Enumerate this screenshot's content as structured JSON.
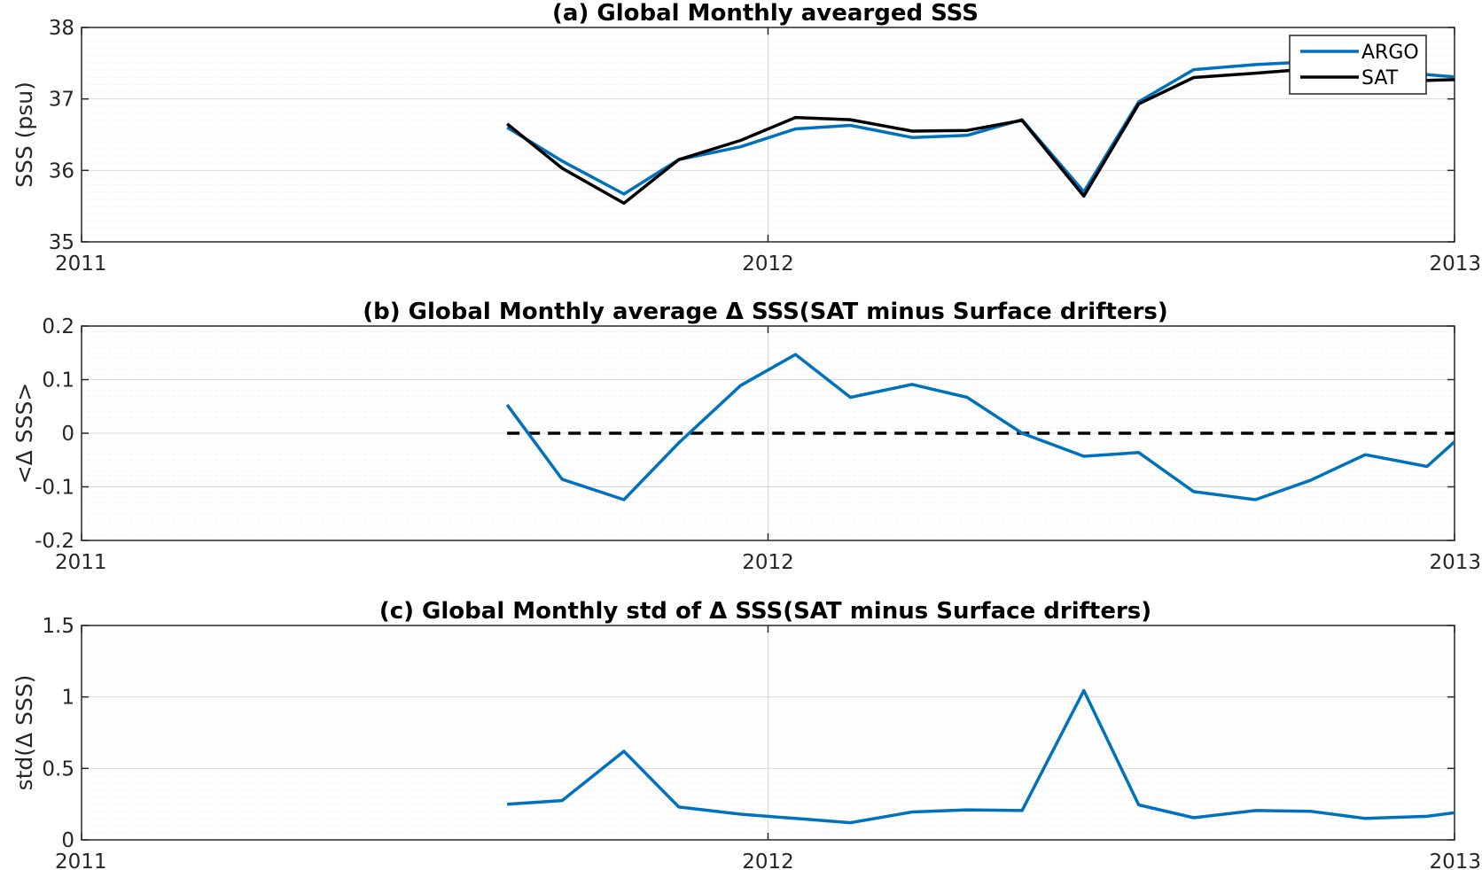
{
  "colors": {
    "argo": "#0072BD",
    "sat": "#000000",
    "axis": "#262626",
    "grid": "#d9d9d9",
    "minor_grid": "#ebebeb"
  },
  "chart_data": [
    {
      "type": "line",
      "title": "(a) Global Monthly avearged SSS",
      "xlabel": "",
      "ylabel": "SSS (psu)",
      "xlim": [
        2011,
        2013
      ],
      "ylim": [
        35,
        38
      ],
      "x_ticks": [
        "2011",
        "2012",
        "2013"
      ],
      "y_ticks": [
        "35",
        "36",
        "37",
        "38"
      ],
      "grid": true,
      "legend": "top-right",
      "x": [
        2011.62,
        2011.7,
        2011.79,
        2011.87,
        2011.96,
        2012.04,
        2012.12,
        2012.21,
        2012.29,
        2012.37,
        2012.46,
        2012.54,
        2012.62,
        2012.71,
        2012.79,
        2012.87,
        2012.96,
        2013.0
      ],
      "series": [
        {
          "name": "ARGO",
          "values": [
            36.6,
            36.13,
            35.67,
            36.15,
            36.33,
            36.58,
            36.63,
            36.46,
            36.49,
            36.71,
            35.7,
            36.96,
            37.41,
            37.48,
            37.52,
            37.38,
            37.34,
            37.31
          ]
        },
        {
          "name": "SAT",
          "values": [
            36.65,
            36.03,
            35.54,
            36.15,
            36.42,
            36.74,
            36.71,
            36.55,
            36.56,
            36.7,
            35.64,
            36.93,
            37.3,
            37.36,
            37.42,
            37.33,
            37.26,
            37.27
          ]
        }
      ]
    },
    {
      "type": "line",
      "title": "(b) Global Monthly average Δ SSS(SAT minus Surface drifters)",
      "xlabel": "",
      "ylabel": "<Δ SSS>",
      "xlim": [
        2011,
        2013
      ],
      "ylim": [
        -0.2,
        0.2
      ],
      "x_ticks": [
        "2011",
        "2012",
        "2013"
      ],
      "y_ticks": [
        "-0.2",
        "-0.1",
        "0",
        "0.1",
        "0.2"
      ],
      "grid": true,
      "x": [
        2011.62,
        2011.7,
        2011.79,
        2011.87,
        2011.96,
        2012.04,
        2012.12,
        2012.21,
        2012.29,
        2012.37,
        2012.46,
        2012.54,
        2012.62,
        2012.71,
        2012.79,
        2012.87,
        2012.96,
        2013.0
      ],
      "series": [
        {
          "values": [
            0.053,
            -0.086,
            -0.124,
            -0.018,
            0.089,
            0.147,
            0.067,
            0.091,
            0.067,
            0.0,
            -0.043,
            -0.036,
            -0.109,
            -0.124,
            -0.088,
            -0.04,
            -0.062,
            -0.016
          ]
        }
      ],
      "zero_line": {
        "y": 0,
        "x_from": 2011.62,
        "x_to": 2013.0,
        "style": "dashed"
      }
    },
    {
      "type": "line",
      "title": "(c) Global Monthly std of Δ SSS(SAT minus Surface drifters)",
      "xlabel": "",
      "ylabel": "std(Δ SSS)",
      "xlim": [
        2011,
        2013
      ],
      "ylim": [
        0,
        1.5
      ],
      "x_ticks": [
        "2011",
        "2012",
        "2013"
      ],
      "y_ticks": [
        "0",
        "0.5",
        "1",
        "1.5"
      ],
      "grid": true,
      "x": [
        2011.62,
        2011.7,
        2011.79,
        2011.87,
        2011.96,
        2012.04,
        2012.12,
        2012.21,
        2012.29,
        2012.37,
        2012.46,
        2012.54,
        2012.62,
        2012.71,
        2012.79,
        2012.87,
        2012.96,
        2013.0
      ],
      "series": [
        {
          "values": [
            0.25,
            0.275,
            0.62,
            0.23,
            0.18,
            0.15,
            0.12,
            0.195,
            0.21,
            0.205,
            1.045,
            0.245,
            0.155,
            0.205,
            0.2,
            0.15,
            0.165,
            0.19
          ]
        }
      ]
    }
  ]
}
